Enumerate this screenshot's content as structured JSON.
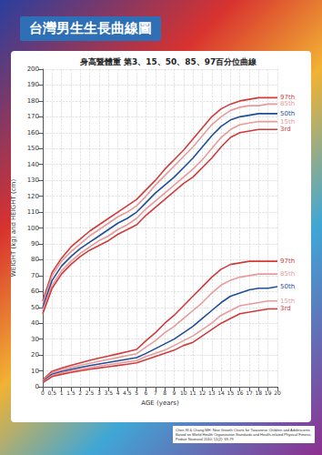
{
  "chart_data": {
    "type": "line",
    "title": "台灣男生生長曲線圖",
    "subtitle": "身高暨體重 第3、15、50、85、97百分位曲線",
    "x_label": "AGE (years)",
    "y_label": "WEIGHT (kg) and HEIGHT (cm)",
    "source": "Chen W & Chang MH: New Growth Charts for Taiwanese Children and Adolescents Based on World Health Organization Standards and Health-related Physical Fitness. Pediatr Neonatol 2010; 51(2): 69-79",
    "categories": [
      "0",
      "0.5",
      "1",
      "1.5",
      "2",
      "2.5",
      "3",
      "3.5",
      "4",
      "4.5",
      "5",
      "6",
      "7",
      "8",
      "9",
      "10",
      "11",
      "12",
      "13",
      "14",
      "15",
      "16",
      "17",
      "18",
      "19",
      "20"
    ],
    "ylim": [
      0,
      200
    ],
    "yticks": [
      0,
      10,
      20,
      30,
      40,
      50,
      60,
      70,
      80,
      90,
      100,
      110,
      120,
      130,
      140,
      150,
      160,
      170,
      180,
      190,
      200
    ],
    "grid": true,
    "series": [
      {
        "name": "97th",
        "color": "#d23a3a",
        "values": [
          54,
          72,
          81,
          88,
          93,
          98,
          102,
          106,
          110,
          114,
          118,
          124,
          130,
          137,
          143,
          149,
          156,
          163,
          170,
          175,
          178,
          180,
          181,
          182,
          182,
          182
        ]
      },
      {
        "name": "85th",
        "color": "#e99a9a",
        "values": [
          52,
          70,
          79,
          85,
          90,
          95,
          99,
          103,
          107,
          110,
          114,
          120,
          127,
          133,
          139,
          145,
          151,
          158,
          165,
          170,
          174,
          176,
          177,
          177,
          178,
          178
        ]
      },
      {
        "name": "50th",
        "color": "#1f4e9a",
        "values": [
          50,
          67,
          76,
          82,
          87,
          91,
          95,
          99,
          103,
          106,
          110,
          116,
          122,
          127,
          132,
          138,
          144,
          151,
          158,
          164,
          168,
          170,
          171,
          172,
          172,
          172
        ]
      },
      {
        "name": "15th",
        "color": "#e99a9a",
        "values": [
          48,
          64,
          73,
          79,
          84,
          88,
          92,
          95,
          99,
          102,
          106,
          112,
          117,
          122,
          127,
          132,
          137,
          143,
          150,
          157,
          162,
          165,
          166,
          167,
          167,
          167
        ]
      },
      {
        "name": "3rd",
        "color": "#d23a3a",
        "values": [
          46,
          62,
          71,
          77,
          82,
          86,
          89,
          92,
          96,
          99,
          102,
          108,
          113,
          118,
          123,
          128,
          132,
          138,
          144,
          151,
          157,
          160,
          161,
          162,
          162,
          162
        ]
      },
      {
        "name": "97th",
        "color": "#d23a3a",
        "values": [
          4.4,
          9.8,
          11.8,
          13.5,
          15.1,
          16.6,
          18,
          19.3,
          20.7,
          22.1,
          23.5,
          29,
          34,
          40,
          45,
          51,
          57,
          63,
          69,
          74,
          77,
          78,
          79,
          79,
          79,
          79
        ]
      },
      {
        "name": "85th",
        "color": "#e99a9a",
        "values": [
          3.9,
          8.8,
          10.7,
          12.1,
          13.5,
          14.8,
          16,
          17.2,
          18.4,
          19.6,
          20.8,
          25,
          29,
          34,
          38,
          43,
          48,
          53,
          59,
          64,
          67,
          69,
          70,
          71,
          71,
          71
        ]
      },
      {
        "name": "50th",
        "color": "#1f4e9a",
        "values": [
          3.3,
          7.9,
          9.6,
          10.9,
          12.2,
          13.3,
          14.3,
          15.3,
          16.3,
          17.3,
          18.3,
          21,
          24,
          27,
          30,
          34,
          38,
          43,
          48,
          53,
          57,
          59,
          61,
          62,
          62,
          63
        ]
      },
      {
        "name": "15th",
        "color": "#e99a9a",
        "values": [
          2.9,
          7.1,
          8.7,
          9.9,
          11,
          12,
          13,
          13.9,
          14.8,
          15.7,
          16.5,
          19,
          21,
          23,
          26,
          29,
          32,
          36,
          40,
          45,
          48,
          51,
          52,
          53,
          54,
          54
        ]
      },
      {
        "name": "3rd",
        "color": "#d23a3a",
        "values": [
          2.5,
          6.4,
          7.8,
          9,
          10,
          11,
          11.8,
          12.6,
          13.4,
          14.2,
          15,
          17,
          19,
          21,
          23,
          26,
          28,
          32,
          36,
          40,
          43,
          46,
          47,
          48,
          49,
          49
        ]
      }
    ]
  }
}
